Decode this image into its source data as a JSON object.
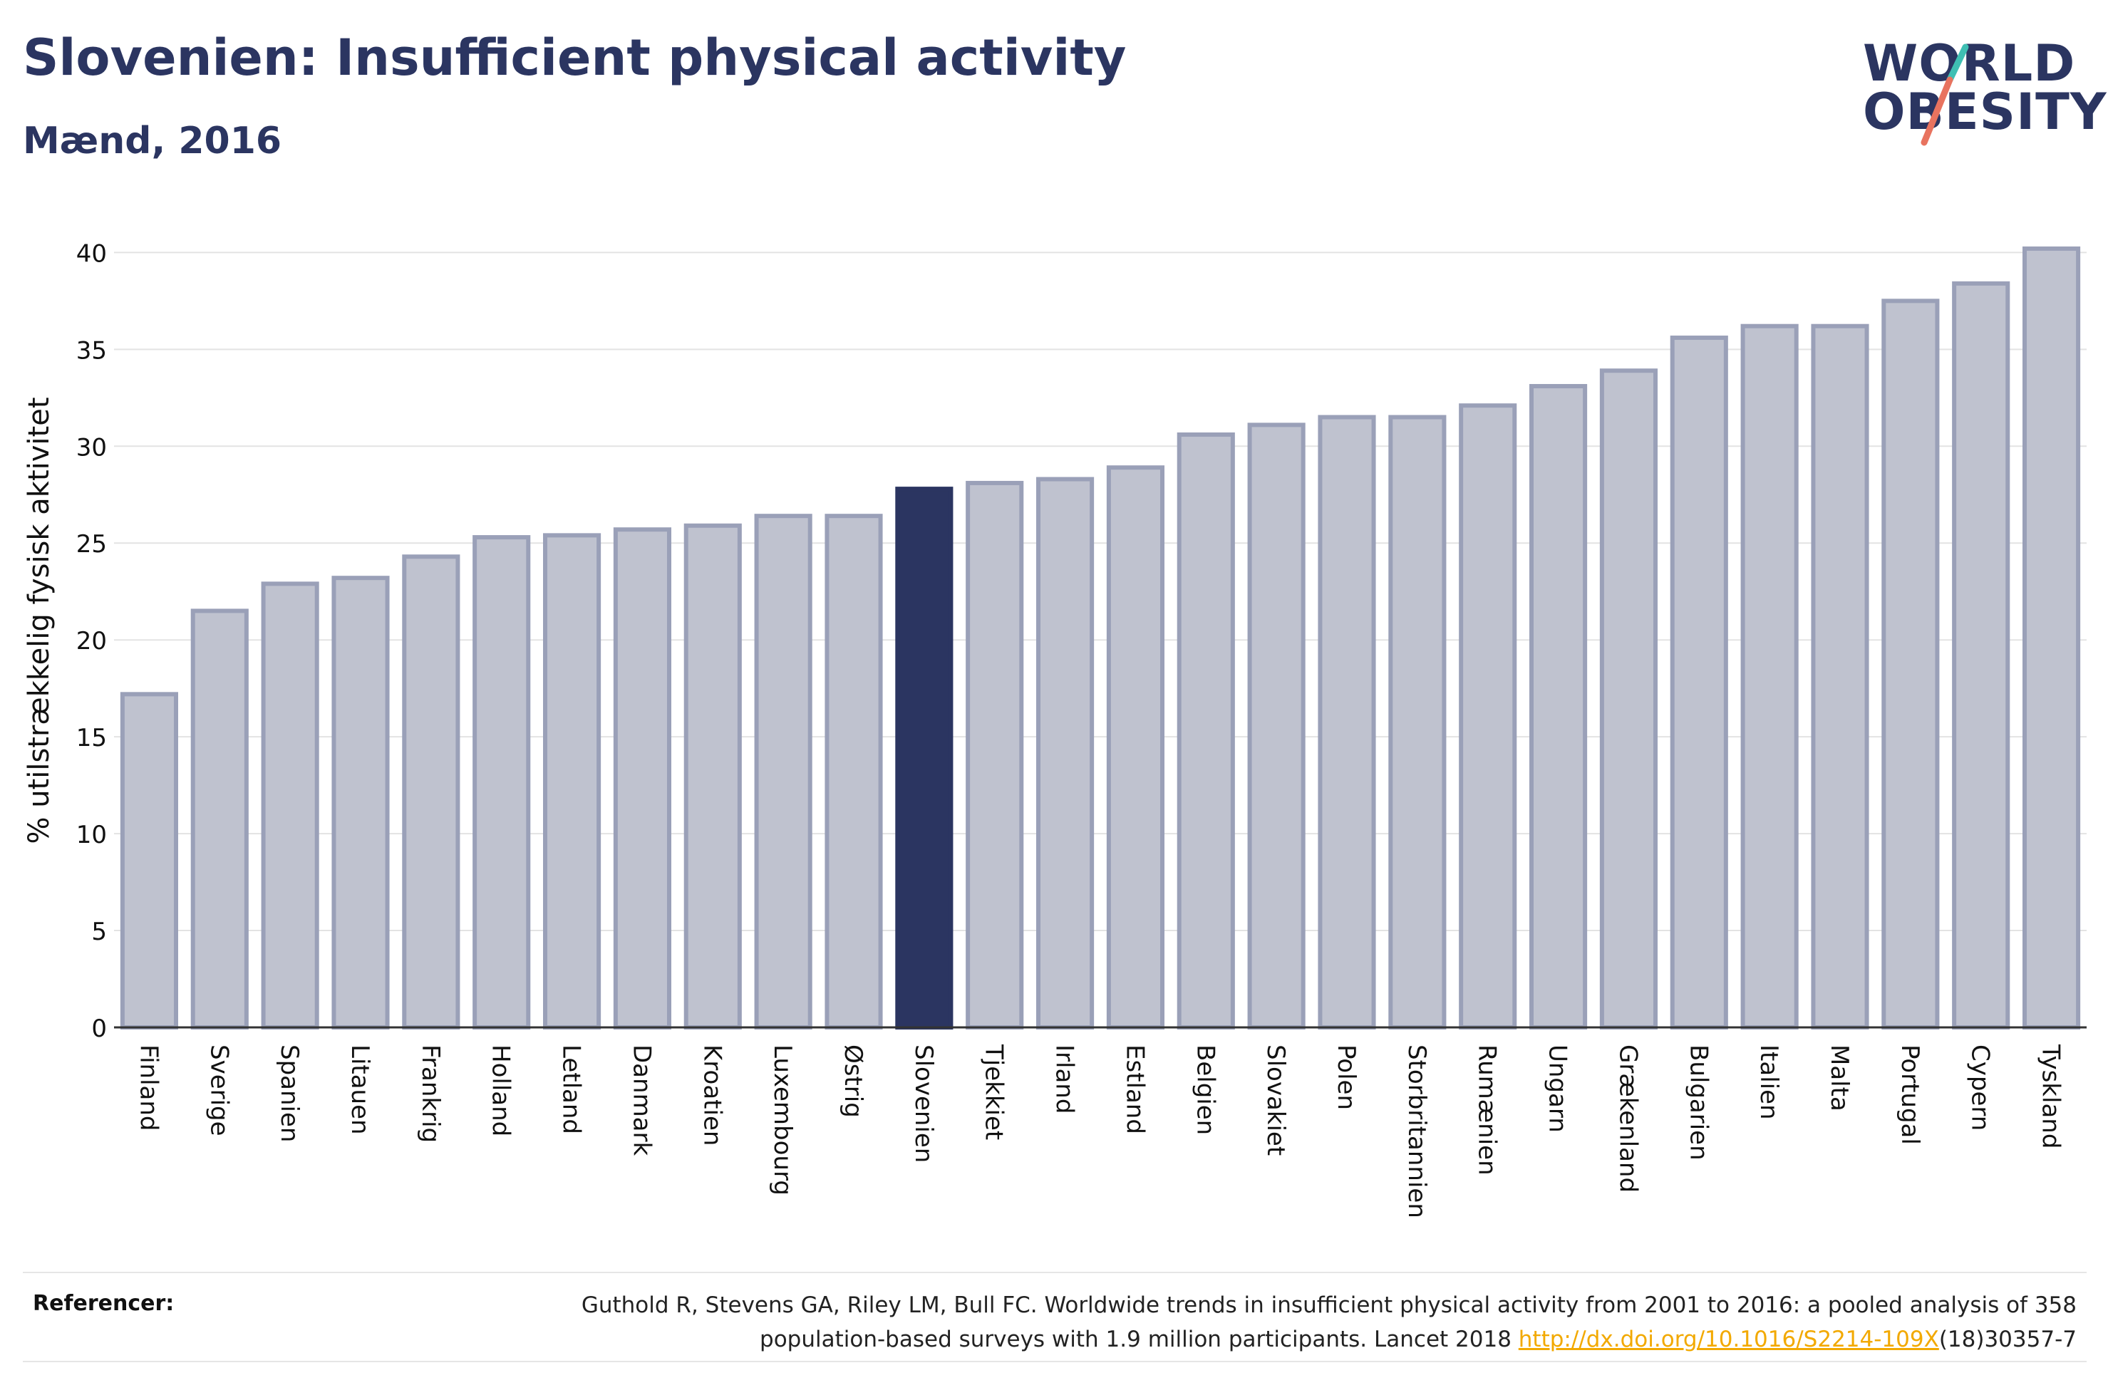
{
  "header": {
    "title": "Slovenien: Insufficient physical activity",
    "subtitle": "Mænd, 2016"
  },
  "logo": {
    "line1": "WORLD",
    "line2": "OBESITY",
    "colors": {
      "text": "#2b3561",
      "slash_top": "#3fbfb3",
      "slash_bottom": "#e8735f"
    }
  },
  "chart_data": {
    "type": "bar",
    "title": "Slovenien: Insufficient physical activity",
    "subtitle": "Mænd, 2016",
    "xlabel": "",
    "ylabel": "% utilstrækkelig fysisk aktivitet",
    "ylim": [
      0,
      42
    ],
    "yticks": [
      0,
      5,
      10,
      15,
      20,
      25,
      30,
      35,
      40
    ],
    "grid": true,
    "highlight": "Slovenien",
    "colors": {
      "bar": "#bfc2cf",
      "bar_border": "#9aa0b8",
      "highlight": "#2b3561"
    },
    "categories": [
      "Finland",
      "Sverige",
      "Spanien",
      "Litauen",
      "Frankrig",
      "Holland",
      "Letland",
      "Danmark",
      "Kroatien",
      "Luxembourg",
      "Østrig",
      "Slovenien",
      "Tjekkiet",
      "Irland",
      "Estland",
      "Belgien",
      "Slovakiet",
      "Polen",
      "Storbritannien",
      "Rumænien",
      "Ungarn",
      "Grækenland",
      "Bulgarien",
      "Italien",
      "Malta",
      "Portugal",
      "Cypern",
      "Tyskland"
    ],
    "values": [
      17.2,
      21.5,
      22.9,
      23.2,
      24.3,
      25.3,
      25.4,
      25.7,
      25.9,
      26.4,
      26.4,
      27.8,
      28.1,
      28.3,
      28.9,
      30.6,
      31.1,
      31.5,
      31.5,
      32.1,
      33.1,
      33.9,
      35.6,
      36.2,
      36.2,
      37.5,
      38.4,
      40.2
    ]
  },
  "footer": {
    "label": "Referencer:",
    "line1": "Guthold R, Stevens GA, Riley LM, Bull FC. Worldwide trends in insufficient physical activity from 2001 to 2016: a pooled analysis of 358",
    "line2_pre": "population-based surveys with 1.9 million participants. Lancet 2018 ",
    "link": "http://dx.doi.org/10.1016/S2214-109X",
    "line2_post": "(18)30357-7"
  }
}
